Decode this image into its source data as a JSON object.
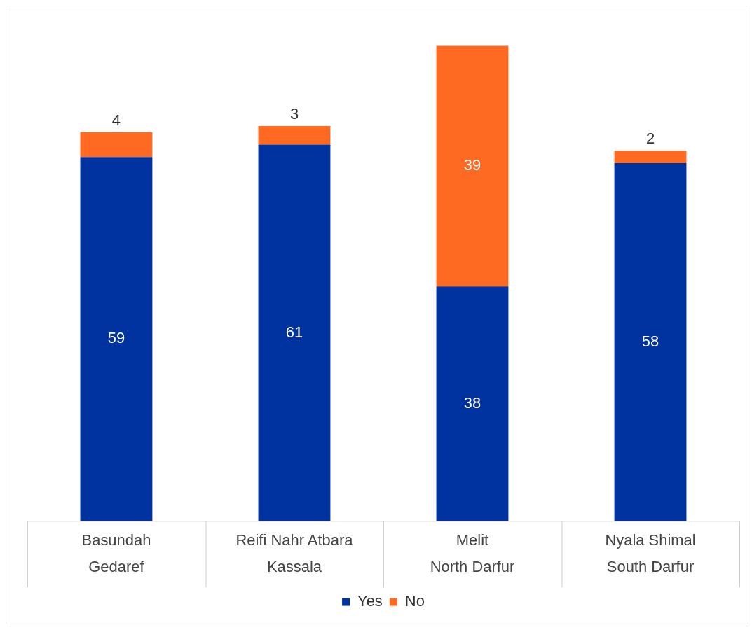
{
  "chart_data": {
    "type": "bar",
    "stacked": true,
    "data_labels": true,
    "legend": "bottom",
    "grid": false,
    "categories": [
      "Basundah\nGedaref",
      "Reifi Nahr Atbara\nKassala",
      "Melit\nNorth Darfur",
      "Nyala Shimal\nSouth Darfur"
    ],
    "series": [
      {
        "name": "Yes",
        "color": "#0033a0",
        "values": [
          59,
          61,
          38,
          58
        ]
      },
      {
        "name": "No",
        "color": "#ff6a22",
        "values": [
          4,
          3,
          39,
          2
        ]
      }
    ]
  }
}
